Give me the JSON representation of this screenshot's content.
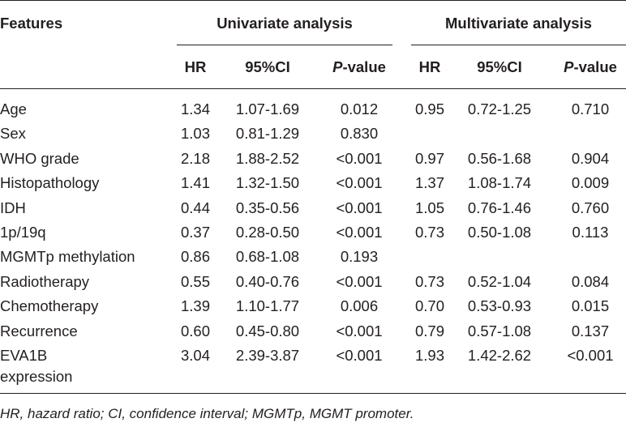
{
  "table": {
    "features_header": "Features",
    "univariate_header": "Univariate analysis",
    "multivariate_header": "Multivariate analysis",
    "sub_headers": {
      "hr": "HR",
      "ci": "95%CI",
      "p_italic": "P",
      "p_rest": "-value"
    },
    "rows": [
      {
        "feature": "Age",
        "u_hr": "1.34",
        "u_ci": "1.07-1.69",
        "u_p": "0.012",
        "m_hr": "0.95",
        "m_ci": "0.72-1.25",
        "m_p": "0.710"
      },
      {
        "feature": "Sex",
        "u_hr": "1.03",
        "u_ci": "0.81-1.29",
        "u_p": "0.830",
        "m_hr": "",
        "m_ci": "",
        "m_p": ""
      },
      {
        "feature": "WHO grade",
        "u_hr": "2.18",
        "u_ci": "1.88-2.52",
        "u_p": "<0.001",
        "m_hr": "0.97",
        "m_ci": "0.56-1.68",
        "m_p": "0.904"
      },
      {
        "feature": "Histopathology",
        "u_hr": "1.41",
        "u_ci": "1.32-1.50",
        "u_p": "<0.001",
        "m_hr": "1.37",
        "m_ci": "1.08-1.74",
        "m_p": "0.009"
      },
      {
        "feature": "IDH",
        "u_hr": "0.44",
        "u_ci": "0.35-0.56",
        "u_p": "<0.001",
        "m_hr": "1.05",
        "m_ci": "0.76-1.46",
        "m_p": "0.760"
      },
      {
        "feature": "1p/19q",
        "u_hr": "0.37",
        "u_ci": "0.28-0.50",
        "u_p": "<0.001",
        "m_hr": "0.73",
        "m_ci": "0.50-1.08",
        "m_p": "0.113"
      },
      {
        "feature": "MGMTp methylation",
        "u_hr": "0.86",
        "u_ci": "0.68-1.08",
        "u_p": "0.193",
        "m_hr": "",
        "m_ci": "",
        "m_p": ""
      },
      {
        "feature": "Radiotherapy",
        "u_hr": "0.55",
        "u_ci": "0.40-0.76",
        "u_p": "<0.001",
        "m_hr": "0.73",
        "m_ci": "0.52-1.04",
        "m_p": "0.084"
      },
      {
        "feature": "Chemotherapy",
        "u_hr": "1.39",
        "u_ci": "1.10-1.77",
        "u_p": "0.006",
        "m_hr": "0.70",
        "m_ci": "0.53-0.93",
        "m_p": "0.015"
      },
      {
        "feature": "Recurrence",
        "u_hr": "0.60",
        "u_ci": "0.45-0.80",
        "u_p": "<0.001",
        "m_hr": "0.79",
        "m_ci": "0.57-1.08",
        "m_p": "0.137"
      },
      {
        "feature": "EVA1B",
        "u_hr": "3.04",
        "u_ci": "2.39-3.87",
        "u_p": "<0.001",
        "m_hr": "1.93",
        "m_ci": "1.42-2.62",
        "m_p": "<0.001"
      }
    ],
    "last_row_continuation": "expression",
    "footnote": "HR, hazard ratio; CI, confidence interval; MGMTp, MGMT promoter."
  }
}
